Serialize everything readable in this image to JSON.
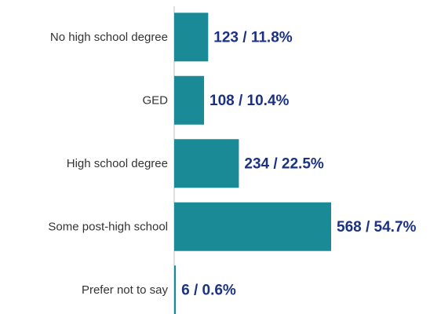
{
  "chart_data": {
    "type": "bar",
    "orientation": "horizontal",
    "categories": [
      "No high school degree",
      "GED",
      "High school degree",
      "Some post-high school",
      "Prefer not to say"
    ],
    "values": [
      123,
      108,
      234,
      568,
      6
    ],
    "value_labels": [
      "123 / 11.8%",
      "108 / 10.4%",
      "234 / 22.5%",
      "568 / 54.7%",
      "6 / 0.6%"
    ],
    "color": "#1a8a96"
  }
}
